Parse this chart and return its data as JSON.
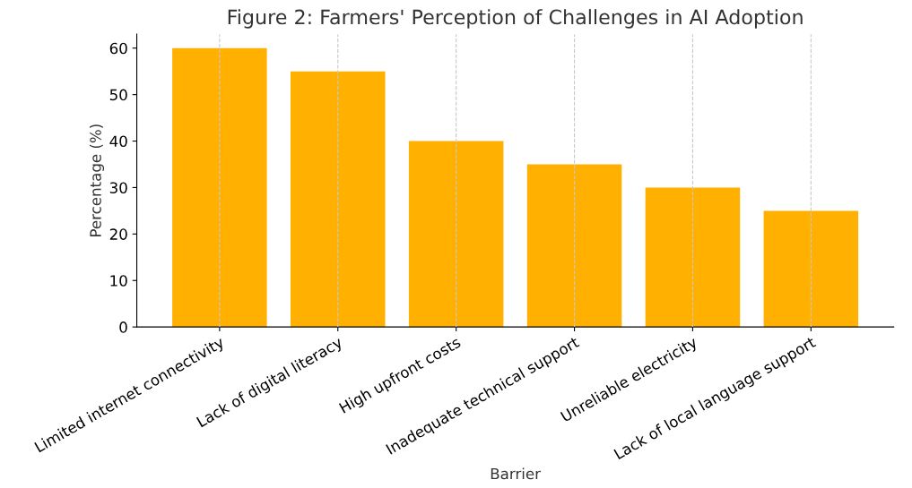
{
  "chart_data": {
    "type": "bar",
    "title": "Figure 2: Farmers' Perception of Challenges in AI Adoption",
    "xlabel": "Barrier",
    "ylabel": "Percentage (%)",
    "categories": [
      "Limited internet connectivity",
      "Lack of digital literacy",
      "High upfront costs",
      "Inadequate technical support",
      "Unreliable electricity",
      "Lack of local language support"
    ],
    "values": [
      60,
      55,
      40,
      35,
      30,
      25
    ],
    "color": "#ffb000",
    "ylim": [
      0,
      63
    ],
    "yticks": [
      0,
      10,
      20,
      30,
      40,
      50,
      60
    ],
    "grid": "x"
  }
}
